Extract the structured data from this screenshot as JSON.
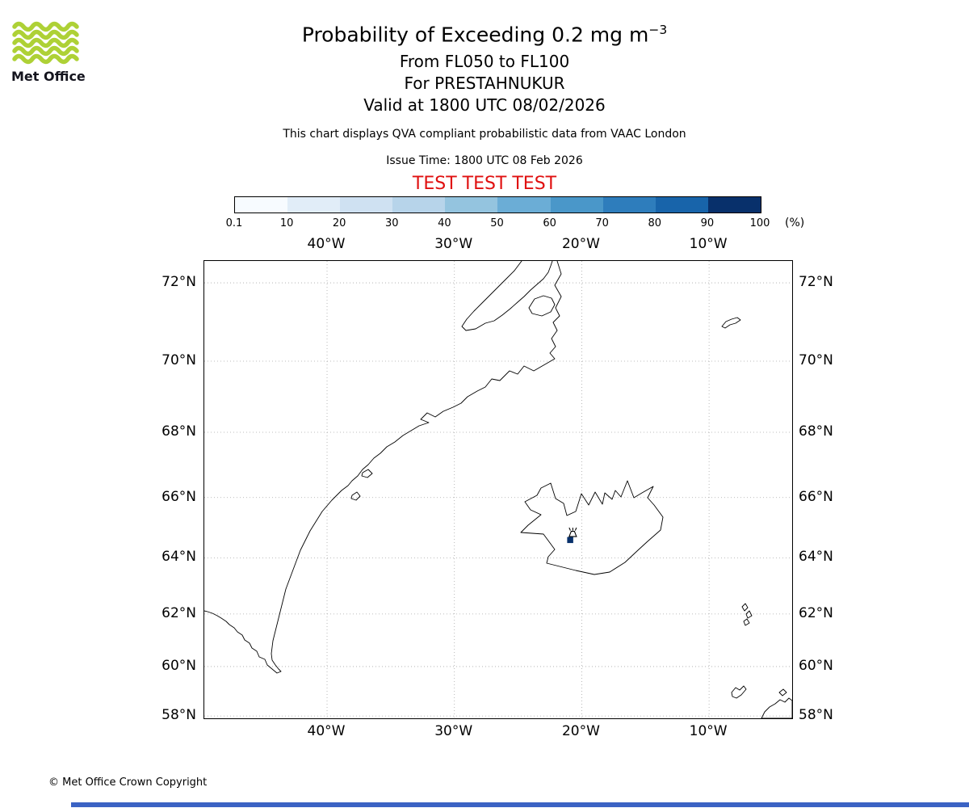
{
  "header": {
    "logo_text": "Met Office",
    "title_main": "Probability of Exceeding 0.2 mg m",
    "title_sup": "−3",
    "subtitle_lines": [
      "From FL050 to FL100",
      "For PRESTAHNUKUR",
      "Valid at 1800 UTC 08/02/2026"
    ],
    "description": "This chart displays QVA compliant probabilistic data from VAAC London",
    "issue_time": "Issue Time: 1800 UTC 08 Feb 2026",
    "test_banner": "TEST TEST TEST",
    "test_banner_color": "#e01010",
    "logo_green": "#aed136"
  },
  "colorbar": {
    "tick_labels": [
      "0.1",
      "10",
      "20",
      "30",
      "40",
      "50",
      "60",
      "70",
      "80",
      "90",
      "100"
    ],
    "unit_label": "(%)",
    "segment_colors": [
      "#f7fbff",
      "#e1edf8",
      "#cfe1f2",
      "#b7d4ea",
      "#94c4df",
      "#6badd6",
      "#4a97c9",
      "#2e7dbc",
      "#1864aa",
      "#08306b"
    ]
  },
  "map": {
    "lon_labels": [
      "40°W",
      "30°W",
      "20°W",
      "10°W"
    ],
    "lat_labels": [
      "72°N",
      "70°N",
      "68°N",
      "66°N",
      "64°N",
      "62°N",
      "60°N",
      "58°N"
    ],
    "volcano_marker": {
      "lat": 64.6,
      "lon": -20.7,
      "cell_color": "#08306b"
    }
  },
  "footer": {
    "copyright": "© Met Office Crown Copyright",
    "bottom_bar_color": "#3b63c4"
  }
}
